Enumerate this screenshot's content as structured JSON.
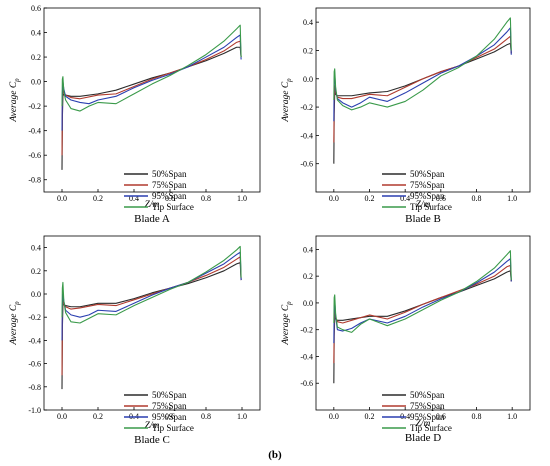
{
  "figure_label": "(b)",
  "chart_data": [
    {
      "type": "line",
      "title": "Blade A",
      "xlabel": "Z/m",
      "ylabel": "Average C",
      "ylabel_sub": "p",
      "xlim": [
        -0.1,
        1.1
      ],
      "ylim": [
        -0.9,
        0.6
      ],
      "xticks": [
        "0.0",
        "0.2",
        "0.4",
        "0.6",
        "0.8",
        "1.0"
      ],
      "xtick_values": [
        0,
        0.2,
        0.4,
        0.6,
        0.8,
        1.0
      ],
      "yticks": [
        "0.6",
        "0.4",
        "0.2",
        "0.0",
        "-0.2",
        "-0.4",
        "-0.6",
        "-0.8"
      ],
      "ytick_values": [
        0.6,
        0.4,
        0.2,
        0,
        -0.2,
        -0.4,
        -0.6,
        -0.8
      ],
      "legend_position": "bottom-right",
      "series": [
        {
          "name": "50%Span",
          "color": "#2b2b2b",
          "x": [
            0,
            0.002,
            0.005,
            0.01,
            0.02,
            0.05,
            0.1,
            0.2,
            0.3,
            0.4,
            0.5,
            0.6,
            0.7,
            0.8,
            0.9,
            0.97,
            0.99,
            0.995
          ],
          "y": [
            -0.72,
            -0.3,
            -0.12,
            -0.1,
            -0.11,
            -0.12,
            -0.12,
            -0.1,
            -0.07,
            -0.02,
            0.03,
            0.07,
            0.12,
            0.17,
            0.23,
            0.28,
            0.28,
            0.2
          ]
        },
        {
          "name": "75%Span",
          "color": "#b03a2e",
          "x": [
            0,
            0.002,
            0.005,
            0.01,
            0.02,
            0.05,
            0.1,
            0.2,
            0.3,
            0.4,
            0.5,
            0.6,
            0.7,
            0.8,
            0.9,
            0.97,
            0.99,
            0.995
          ],
          "y": [
            -0.6,
            -0.2,
            -0.06,
            -0.09,
            -0.11,
            -0.13,
            -0.14,
            -0.11,
            -0.1,
            -0.04,
            0.02,
            0.07,
            0.12,
            0.18,
            0.25,
            0.32,
            0.33,
            0.2
          ]
        },
        {
          "name": "95%Span",
          "color": "#2a3fb0",
          "x": [
            0,
            0.002,
            0.005,
            0.01,
            0.02,
            0.05,
            0.1,
            0.15,
            0.2,
            0.3,
            0.4,
            0.5,
            0.6,
            0.7,
            0.8,
            0.9,
            0.97,
            0.99,
            0.995
          ],
          "y": [
            -0.4,
            -0.1,
            0.0,
            -0.06,
            -0.12,
            -0.15,
            -0.17,
            -0.18,
            -0.15,
            -0.12,
            -0.05,
            0.01,
            0.06,
            0.12,
            0.2,
            0.28,
            0.36,
            0.38,
            0.18
          ]
        },
        {
          "name": "Tip Surface",
          "color": "#3a9a4a",
          "x": [
            0,
            0.002,
            0.005,
            0.01,
            0.02,
            0.05,
            0.1,
            0.15,
            0.2,
            0.3,
            0.4,
            0.5,
            0.6,
            0.7,
            0.8,
            0.9,
            0.97,
            0.99,
            0.995
          ],
          "y": [
            -0.2,
            0.02,
            0.04,
            -0.08,
            -0.15,
            -0.22,
            -0.24,
            -0.2,
            -0.17,
            -0.18,
            -0.1,
            -0.02,
            0.05,
            0.13,
            0.22,
            0.33,
            0.43,
            0.46,
            0.2
          ]
        }
      ]
    },
    {
      "type": "line",
      "title": "Blade B",
      "xlabel": "Z/m",
      "ylabel": "Average C",
      "ylabel_sub": "p",
      "xlim": [
        -0.1,
        1.1
      ],
      "ylim": [
        -0.8,
        0.5
      ],
      "xticks": [
        "0.0",
        "0.2",
        "0.4",
        "0.6",
        "0.8",
        "1.0"
      ],
      "xtick_values": [
        0,
        0.2,
        0.4,
        0.6,
        0.8,
        1.0
      ],
      "yticks": [
        "0.4",
        "0.2",
        "0.0",
        "-0.2",
        "-0.4",
        "-0.6"
      ],
      "ytick_values": [
        0.4,
        0.2,
        0,
        -0.2,
        -0.4,
        -0.6
      ],
      "legend_position": "bottom-right",
      "series": [
        {
          "name": "50%Span",
          "color": "#2b2b2b",
          "x": [
            0,
            0.002,
            0.005,
            0.01,
            0.02,
            0.05,
            0.1,
            0.2,
            0.3,
            0.4,
            0.5,
            0.6,
            0.7,
            0.8,
            0.9,
            0.97,
            0.99,
            0.995
          ],
          "y": [
            -0.6,
            -0.25,
            -0.1,
            -0.11,
            -0.12,
            -0.12,
            -0.12,
            -0.1,
            -0.09,
            -0.05,
            0.0,
            0.05,
            0.09,
            0.14,
            0.19,
            0.24,
            0.25,
            0.18
          ]
        },
        {
          "name": "75%Span",
          "color": "#b03a2e",
          "x": [
            0,
            0.002,
            0.005,
            0.01,
            0.02,
            0.05,
            0.1,
            0.2,
            0.3,
            0.4,
            0.5,
            0.6,
            0.7,
            0.8,
            0.9,
            0.97,
            0.99,
            0.995
          ],
          "y": [
            -0.45,
            -0.15,
            -0.05,
            -0.1,
            -0.13,
            -0.14,
            -0.14,
            -0.11,
            -0.12,
            -0.06,
            0.0,
            0.05,
            0.09,
            0.15,
            0.21,
            0.28,
            0.3,
            0.18
          ]
        },
        {
          "name": "95%Span",
          "color": "#2a3fb0",
          "x": [
            0,
            0.002,
            0.005,
            0.01,
            0.02,
            0.05,
            0.1,
            0.15,
            0.2,
            0.3,
            0.4,
            0.5,
            0.6,
            0.7,
            0.8,
            0.9,
            0.97,
            0.99,
            0.995
          ],
          "y": [
            -0.3,
            0.0,
            0.04,
            -0.08,
            -0.14,
            -0.17,
            -0.2,
            -0.17,
            -0.13,
            -0.16,
            -0.1,
            -0.03,
            0.04,
            0.09,
            0.16,
            0.24,
            0.33,
            0.36,
            0.17
          ]
        },
        {
          "name": "Tip Surface",
          "color": "#3a9a4a",
          "x": [
            0,
            0.002,
            0.005,
            0.01,
            0.02,
            0.05,
            0.1,
            0.15,
            0.2,
            0.3,
            0.4,
            0.5,
            0.6,
            0.7,
            0.8,
            0.9,
            0.97,
            0.99,
            0.995
          ],
          "y": [
            -0.15,
            0.05,
            0.07,
            -0.06,
            -0.15,
            -0.19,
            -0.22,
            -0.2,
            -0.17,
            -0.2,
            -0.16,
            -0.08,
            0.02,
            0.08,
            0.16,
            0.28,
            0.4,
            0.43,
            0.2
          ]
        }
      ]
    },
    {
      "type": "line",
      "title": "Blade C",
      "xlabel": "Z/m",
      "ylabel": "Average C",
      "ylabel_sub": "p",
      "xlim": [
        -0.1,
        1.1
      ],
      "ylim": [
        -1.0,
        0.5
      ],
      "xticks": [
        "0.0",
        "0.2",
        "0.4",
        "0.6",
        "0.8",
        "1.0"
      ],
      "xtick_values": [
        0,
        0.2,
        0.4,
        0.6,
        0.8,
        1.0
      ],
      "yticks": [
        "0.4",
        "0.2",
        "0.0",
        "-0.2",
        "-0.4",
        "-0.6",
        "-0.8",
        "-1.0"
      ],
      "ytick_values": [
        0.4,
        0.2,
        0,
        -0.2,
        -0.4,
        -0.6,
        -0.8,
        -1.0
      ],
      "legend_position": "bottom-right",
      "series": [
        {
          "name": "50%Span",
          "color": "#2b2b2b",
          "x": [
            0,
            0.002,
            0.005,
            0.01,
            0.02,
            0.05,
            0.1,
            0.2,
            0.3,
            0.4,
            0.5,
            0.6,
            0.7,
            0.8,
            0.9,
            0.97,
            0.99,
            0.995
          ],
          "y": [
            -0.82,
            -0.3,
            -0.1,
            -0.09,
            -0.1,
            -0.11,
            -0.11,
            -0.08,
            -0.08,
            -0.04,
            0.01,
            0.05,
            0.09,
            0.14,
            0.2,
            0.26,
            0.27,
            0.12
          ]
        },
        {
          "name": "75%Span",
          "color": "#b03a2e",
          "x": [
            0,
            0.002,
            0.005,
            0.01,
            0.02,
            0.05,
            0.1,
            0.2,
            0.3,
            0.4,
            0.5,
            0.6,
            0.7,
            0.8,
            0.9,
            0.97,
            0.99,
            0.995
          ],
          "y": [
            -0.7,
            -0.2,
            -0.05,
            -0.08,
            -0.11,
            -0.13,
            -0.12,
            -0.09,
            -0.1,
            -0.05,
            0.0,
            0.05,
            0.1,
            0.16,
            0.23,
            0.3,
            0.32,
            0.12
          ]
        },
        {
          "name": "95%Span",
          "color": "#2a3fb0",
          "x": [
            0,
            0.002,
            0.005,
            0.01,
            0.02,
            0.05,
            0.1,
            0.15,
            0.2,
            0.3,
            0.4,
            0.5,
            0.6,
            0.7,
            0.8,
            0.9,
            0.97,
            0.99,
            0.995
          ],
          "y": [
            -0.4,
            -0.1,
            0.0,
            -0.06,
            -0.14,
            -0.18,
            -0.2,
            -0.18,
            -0.14,
            -0.15,
            -0.08,
            -0.01,
            0.05,
            0.1,
            0.18,
            0.26,
            0.34,
            0.36,
            0.12
          ]
        },
        {
          "name": "Tip Surface",
          "color": "#3a9a4a",
          "x": [
            0,
            0.002,
            0.005,
            0.01,
            0.02,
            0.05,
            0.1,
            0.15,
            0.2,
            0.3,
            0.4,
            0.5,
            0.6,
            0.7,
            0.8,
            0.9,
            0.97,
            0.99,
            0.995
          ],
          "y": [
            -0.2,
            0.05,
            0.1,
            -0.06,
            -0.16,
            -0.24,
            -0.25,
            -0.21,
            -0.17,
            -0.18,
            -0.1,
            -0.03,
            0.04,
            0.1,
            0.19,
            0.29,
            0.38,
            0.41,
            0.14
          ]
        }
      ]
    },
    {
      "type": "line",
      "title": "Blade D",
      "xlabel": "Z/m",
      "ylabel": "Average C",
      "ylabel_sub": "p",
      "xlim": [
        -0.1,
        1.1
      ],
      "ylim": [
        -0.8,
        0.5
      ],
      "xticks": [
        "0.0",
        "0.2",
        "0.4",
        "0.6",
        "0.8",
        "1.0"
      ],
      "xtick_values": [
        0,
        0.2,
        0.4,
        0.6,
        0.8,
        1.0
      ],
      "yticks": [
        "0.4",
        "0.2",
        "0.0",
        "-0.2",
        "-0.4",
        "-0.6"
      ],
      "ytick_values": [
        0.4,
        0.2,
        0,
        -0.2,
        -0.4,
        -0.6
      ],
      "legend_position": "bottom-right",
      "series": [
        {
          "name": "50%Span",
          "color": "#2b2b2b",
          "x": [
            0,
            0.002,
            0.005,
            0.01,
            0.02,
            0.05,
            0.1,
            0.2,
            0.3,
            0.4,
            0.5,
            0.6,
            0.7,
            0.8,
            0.9,
            0.97,
            0.99,
            0.995
          ],
          "y": [
            -0.6,
            -0.25,
            -0.1,
            -0.12,
            -0.13,
            -0.13,
            -0.12,
            -0.1,
            -0.1,
            -0.06,
            -0.01,
            0.04,
            0.08,
            0.13,
            0.18,
            0.23,
            0.24,
            0.16
          ]
        },
        {
          "name": "75%Span",
          "color": "#b03a2e",
          "x": [
            0,
            0.002,
            0.005,
            0.01,
            0.02,
            0.05,
            0.1,
            0.2,
            0.3,
            0.4,
            0.5,
            0.6,
            0.7,
            0.8,
            0.9,
            0.97,
            0.99,
            0.995
          ],
          "y": [
            -0.45,
            -0.15,
            -0.05,
            -0.11,
            -0.14,
            -0.15,
            -0.13,
            -0.09,
            -0.12,
            -0.07,
            -0.01,
            0.04,
            0.09,
            0.14,
            0.2,
            0.27,
            0.28,
            0.16
          ]
        },
        {
          "name": "95%Span",
          "color": "#2a3fb0",
          "x": [
            0,
            0.002,
            0.005,
            0.01,
            0.02,
            0.05,
            0.1,
            0.15,
            0.2,
            0.3,
            0.4,
            0.5,
            0.6,
            0.7,
            0.8,
            0.9,
            0.97,
            0.99,
            0.995
          ],
          "y": [
            -0.3,
            -0.05,
            0.02,
            -0.1,
            -0.2,
            -0.21,
            -0.19,
            -0.15,
            -0.12,
            -0.15,
            -0.1,
            -0.03,
            0.03,
            0.08,
            0.15,
            0.23,
            0.31,
            0.33,
            0.16
          ]
        },
        {
          "name": "Tip Surface",
          "color": "#3a9a4a",
          "x": [
            0,
            0.002,
            0.005,
            0.01,
            0.02,
            0.05,
            0.1,
            0.15,
            0.2,
            0.3,
            0.4,
            0.5,
            0.6,
            0.7,
            0.8,
            0.9,
            0.97,
            0.99,
            0.995
          ],
          "y": [
            -0.15,
            0.04,
            0.06,
            -0.08,
            -0.18,
            -0.2,
            -0.22,
            -0.16,
            -0.12,
            -0.17,
            -0.12,
            -0.05,
            0.02,
            0.08,
            0.16,
            0.26,
            0.36,
            0.39,
            0.17
          ]
        }
      ]
    }
  ]
}
